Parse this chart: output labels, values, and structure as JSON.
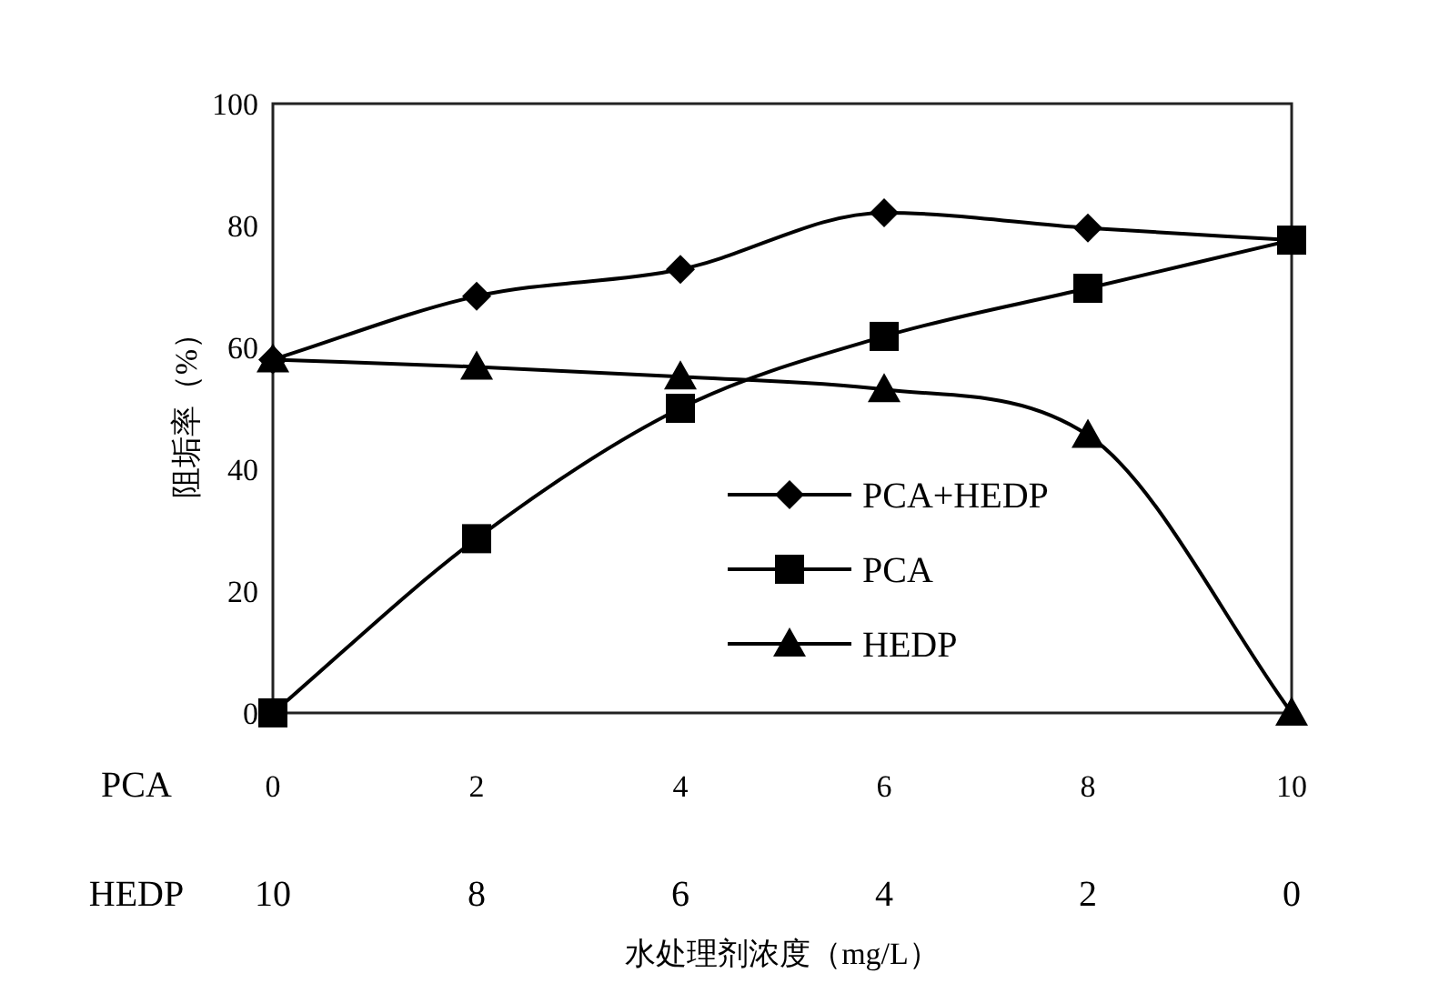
{
  "chart_data": {
    "type": "line",
    "ylabel": "阻垢率（%）",
    "xlabel": "水处理剂浓度（mg/L）",
    "x": [
      0,
      2,
      4,
      6,
      8,
      10
    ],
    "xlim": [
      0,
      10
    ],
    "xticks": [
      0,
      2,
      4,
      6,
      8,
      10
    ],
    "x2lim": [
      10,
      0
    ],
    "x2ticks": [
      10,
      8,
      6,
      4,
      2,
      0
    ],
    "ylim": [
      0,
      100
    ],
    "yticks": [
      0,
      20,
      40,
      60,
      80,
      100
    ],
    "grid": false,
    "legend": "bottom right",
    "line_style": "solid",
    "annotations": [
      "PCA",
      "HEDP"
    ],
    "series": [
      {
        "name": "PCA+HEDP",
        "color": "#000000",
        "marker": "diamond",
        "values": [
          58,
          68.4,
          72.8,
          82.1,
          79.6,
          77.6
        ]
      },
      {
        "name": "PCA",
        "color": "#000000",
        "marker": "square",
        "values": [
          0,
          28.6,
          50,
          61.8,
          69.7,
          77.6
        ]
      },
      {
        "name": "HEDP",
        "color": "#000000",
        "marker": "triangle",
        "values": [
          58,
          56.8,
          55.2,
          53.1,
          45.6,
          0
        ]
      }
    ]
  }
}
